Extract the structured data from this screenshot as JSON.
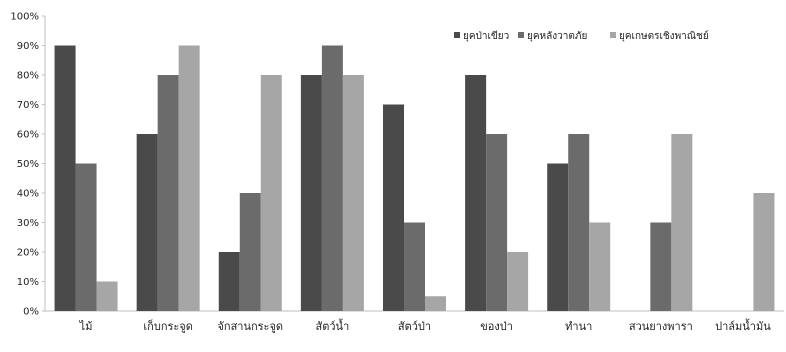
{
  "chart_data": {
    "type": "bar",
    "categories": [
      "ไม้",
      "เก็บกระจูด",
      "จักสานกระจูด",
      "สัตว์น้ำ",
      "สัตว์ป่า",
      "ของป่า",
      "ทำนา",
      "สวนยางพารา",
      "ปาล์มน้ำมัน"
    ],
    "series": [
      {
        "name": "ยุคป่าเขียว",
        "color": "#4a4a4a",
        "values": [
          90,
          60,
          20,
          80,
          70,
          80,
          50,
          0,
          0
        ]
      },
      {
        "name": "ยุคหลังวาตภัย",
        "color": "#6b6b6b",
        "values": [
          50,
          80,
          40,
          90,
          30,
          60,
          60,
          30,
          0
        ]
      },
      {
        "name": "ยุคเกษตรเชิงพาณิชย์",
        "color": "#a6a6a6",
        "values": [
          10,
          90,
          80,
          80,
          5,
          20,
          30,
          60,
          40
        ]
      }
    ],
    "ylim": [
      0,
      100
    ],
    "yticks": [
      "0%",
      "10%",
      "20%",
      "30%",
      "40%",
      "50%",
      "60%",
      "70%",
      "80%",
      "90%",
      "100%"
    ],
    "legend_position": "top-right",
    "grid": false
  }
}
